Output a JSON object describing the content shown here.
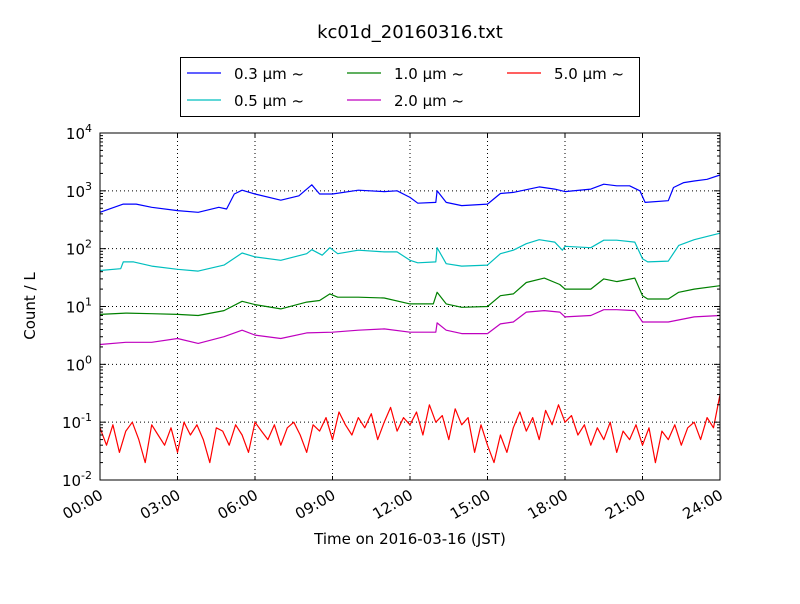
{
  "chart_data": {
    "type": "line",
    "title": "kc01d_20160316.txt",
    "xlabel": "Time on 2016-03-16 (JST)",
    "ylabel": "Count / L",
    "xlim": [
      0,
      24
    ],
    "ylim": [
      0.01,
      10000
    ],
    "yscale": "log",
    "grid": true,
    "legend_position": "top-center, above plot",
    "x_ticks": [
      {
        "value": 0,
        "label": "00:00"
      },
      {
        "value": 3,
        "label": "03:00"
      },
      {
        "value": 6,
        "label": "06:00"
      },
      {
        "value": 9,
        "label": "09:00"
      },
      {
        "value": 12,
        "label": "12:00"
      },
      {
        "value": 15,
        "label": "15:00"
      },
      {
        "value": 18,
        "label": "18:00"
      },
      {
        "value": 21,
        "label": "21:00"
      },
      {
        "value": 24,
        "label": "24:00"
      }
    ],
    "y_ticks": [
      {
        "value": 0.01,
        "base": "10",
        "exp": "-2"
      },
      {
        "value": 0.1,
        "base": "10",
        "exp": "-1"
      },
      {
        "value": 1,
        "base": "10",
        "exp": "0"
      },
      {
        "value": 10,
        "base": "10",
        "exp": "1"
      },
      {
        "value": 100,
        "base": "10",
        "exp": "2"
      },
      {
        "value": 1000,
        "base": "10",
        "exp": "3"
      },
      {
        "value": 10000,
        "base": "10",
        "exp": "4"
      }
    ],
    "series": [
      {
        "name": "0.3 μm ~",
        "color": "#0000ff",
        "x": [
          0,
          0.9,
          1.4,
          2,
          3,
          3.8,
          4.6,
          4.9,
          5.2,
          5.5,
          6,
          7,
          7.7,
          8.2,
          8.5,
          9,
          10,
          11,
          11.5,
          12,
          12.3,
          13,
          13.05,
          13.4,
          14,
          15,
          15.5,
          16,
          17,
          17.6,
          18,
          19,
          19.5,
          20,
          20.5,
          20.9,
          21.1,
          22,
          22.2,
          22.6,
          23,
          23.5,
          24
        ],
        "y": [
          425,
          590,
          590,
          520,
          455,
          425,
          520,
          485,
          880,
          1025,
          880,
          690,
          820,
          1270,
          880,
          880,
          1025,
          970,
          1000,
          770,
          610,
          630,
          1000,
          630,
          555,
          590,
          900,
          940,
          1170,
          1070,
          970,
          1070,
          1300,
          1220,
          1220,
          1000,
          630,
          675,
          1140,
          1390,
          1480,
          1580,
          1880
        ]
      },
      {
        "name": "0.5 μm ~",
        "color": "#00bfbf",
        "x": [
          0,
          0.8,
          0.9,
          1.3,
          2,
          3,
          3.8,
          4.8,
          5.5,
          6,
          7,
          8,
          8.2,
          8.6,
          8.9,
          9.2,
          10,
          11,
          11.5,
          12,
          12.3,
          13,
          13.05,
          13.4,
          14,
          15,
          15.5,
          16,
          16.5,
          17,
          17.6,
          17.9,
          18,
          19,
          19.5,
          20,
          20.7,
          21,
          21.2,
          22,
          22.4,
          23,
          24
        ],
        "y": [
          42,
          45,
          59,
          59,
          50,
          44,
          41,
          52,
          84,
          72,
          63,
          82,
          96,
          77,
          104,
          82,
          94,
          88,
          88,
          63,
          57,
          59,
          104,
          55,
          50,
          52,
          82,
          94,
          122,
          143,
          130,
          94,
          110,
          104,
          140,
          140,
          130,
          67,
          59,
          61,
          114,
          143,
          185
        ]
      },
      {
        "name": "1.0 μm ~",
        "color": "#008000",
        "x": [
          0,
          1,
          2,
          3,
          3.8,
          4.8,
          5.5,
          6,
          7,
          8,
          8.5,
          8.9,
          9.2,
          10,
          11,
          12,
          12.9,
          13.05,
          13.4,
          14,
          15,
          15.5,
          16,
          16.5,
          17.2,
          17.8,
          18,
          19,
          19.5,
          20,
          20.7,
          21,
          21.2,
          22,
          22.4,
          23,
          24
        ],
        "y": [
          7.3,
          7.7,
          7.5,
          7.3,
          7.0,
          8.5,
          12.3,
          10.8,
          9.1,
          11.9,
          12.7,
          16.5,
          14.5,
          14.5,
          14,
          11.1,
          11.1,
          17.6,
          11.1,
          9.7,
          10,
          15.4,
          16.5,
          26,
          31,
          24,
          20,
          20,
          30,
          27,
          31,
          15.4,
          13.5,
          13.5,
          17.6,
          20,
          22.9
        ]
      },
      {
        "name": "2.0 μm ~",
        "color": "#bf00bf",
        "x": [
          0,
          1,
          2,
          3,
          3.8,
          4.8,
          5.5,
          6,
          7,
          8,
          9,
          10,
          11,
          12,
          13,
          13.05,
          13.4,
          14,
          15,
          15.5,
          16,
          16.5,
          17.2,
          17.8,
          18,
          19,
          19.5,
          20,
          20.7,
          21,
          22,
          23,
          24
        ],
        "y": [
          2.2,
          2.4,
          2.4,
          2.8,
          2.3,
          3.0,
          3.9,
          3.2,
          2.8,
          3.5,
          3.6,
          3.9,
          4.1,
          3.6,
          3.6,
          5.2,
          3.9,
          3.4,
          3.4,
          5.0,
          5.4,
          8.0,
          8.5,
          8.0,
          6.6,
          7.0,
          8.8,
          8.8,
          8.5,
          5.4,
          5.4,
          6.6,
          7.0
        ]
      },
      {
        "name": "5.0 μm ~",
        "color": "#ff0000",
        "x_step_hours": 0.25,
        "y": [
          0.08,
          0.04,
          0.09,
          0.03,
          0.07,
          0.1,
          0.05,
          0.02,
          0.09,
          0.06,
          0.04,
          0.08,
          0.03,
          0.1,
          0.06,
          0.09,
          0.05,
          0.02,
          0.08,
          0.07,
          0.04,
          0.09,
          0.06,
          0.03,
          0.1,
          0.07,
          0.05,
          0.09,
          0.04,
          0.08,
          0.1,
          0.06,
          0.03,
          0.09,
          0.07,
          0.12,
          0.05,
          0.15,
          0.09,
          0.06,
          0.12,
          0.08,
          0.14,
          0.05,
          0.1,
          0.18,
          0.07,
          0.12,
          0.09,
          0.15,
          0.06,
          0.2,
          0.1,
          0.13,
          0.05,
          0.17,
          0.09,
          0.12,
          0.03,
          0.09,
          0.04,
          0.02,
          0.06,
          0.03,
          0.08,
          0.15,
          0.07,
          0.12,
          0.05,
          0.16,
          0.09,
          0.2,
          0.1,
          0.13,
          0.06,
          0.09,
          0.04,
          0.08,
          0.05,
          0.1,
          0.03,
          0.07,
          0.05,
          0.09,
          0.04,
          0.08,
          0.02,
          0.07,
          0.05,
          0.09,
          0.04,
          0.08,
          0.1,
          0.05,
          0.12,
          0.08,
          0.3
        ]
      }
    ]
  }
}
